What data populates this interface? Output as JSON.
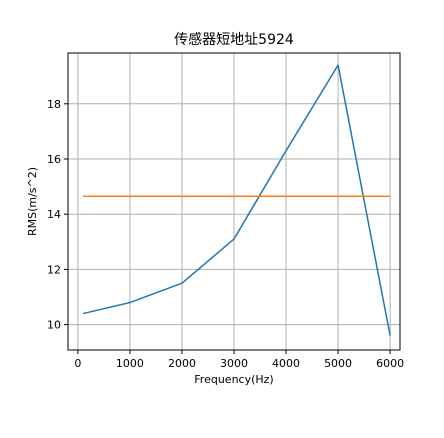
{
  "chart_data": {
    "type": "line",
    "title": "传感器短地址5924",
    "xlabel": "Frequency(Hz)",
    "ylabel": "RMS(m/s^2)",
    "xlim": [
      -190,
      6190
    ],
    "ylim": [
      9.08,
      19.84
    ],
    "xticks": [
      0,
      1000,
      2000,
      3000,
      4000,
      5000,
      6000
    ],
    "yticks": [
      10,
      12,
      14,
      16,
      18
    ],
    "grid": true,
    "series": [
      {
        "color": "#1f77b4",
        "x": [
          100,
          1000,
          2000,
          3000,
          4000,
          5000,
          6000
        ],
        "y": [
          10.4,
          10.8,
          11.5,
          13.1,
          16.3,
          19.4,
          9.6
        ]
      },
      {
        "color": "#ff7f0e",
        "x": [
          100,
          6000
        ],
        "y": [
          14.65,
          14.65
        ]
      }
    ]
  }
}
